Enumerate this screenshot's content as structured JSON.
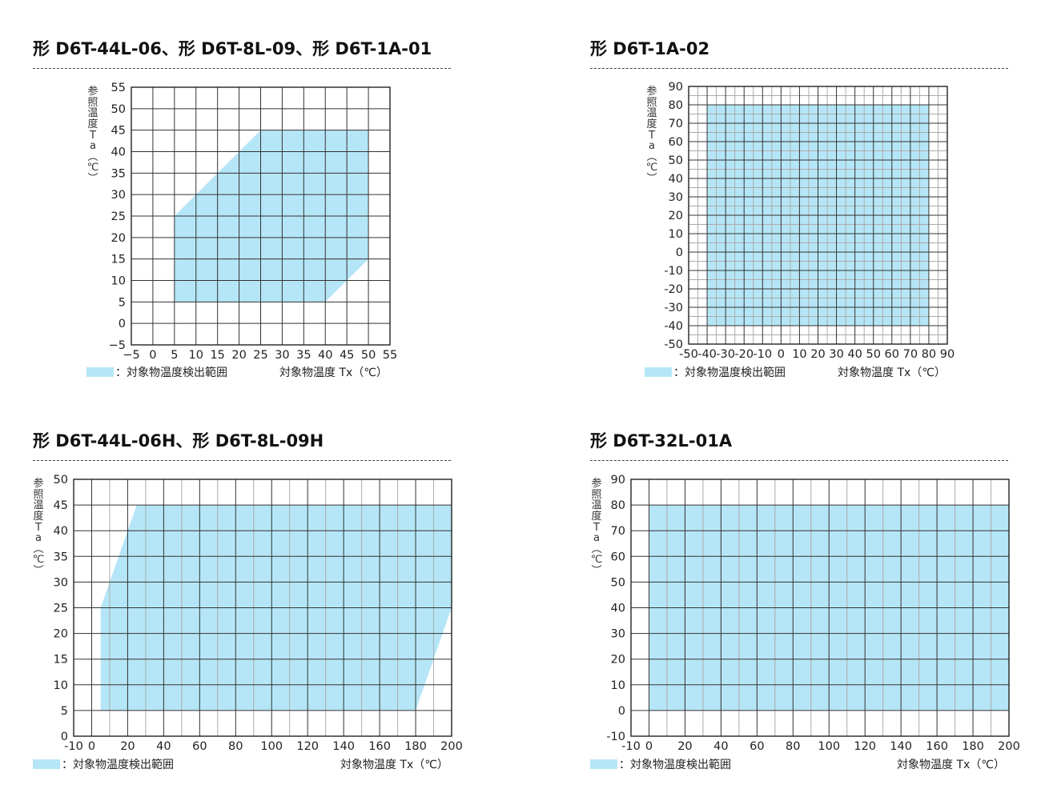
{
  "fill_color": "#b5e6f7",
  "chart_data": [
    {
      "type": "area",
      "panel_title": "形 D6T-44L-06、形 D6T-8L-09、形 D6T-1A-01",
      "ylabel": "参\n照\n温\n度\nT\na\n︵\n℃\n︶",
      "xlabel": "対象物温度 Tx（℃）",
      "legend": "：対象物温度検出範囲",
      "xlim": [
        -5,
        55
      ],
      "ylim": [
        -5,
        55
      ],
      "xticks": [
        -5,
        0,
        5,
        10,
        15,
        20,
        25,
        30,
        35,
        40,
        45,
        50,
        55
      ],
      "yticks": [
        -5,
        0,
        5,
        10,
        15,
        20,
        25,
        30,
        35,
        40,
        45,
        50,
        55
      ],
      "xtick_labels": [
        "−5",
        "0",
        "5",
        "10",
        "15",
        "20",
        "25",
        "30",
        "35",
        "40",
        "45",
        "50",
        "55"
      ],
      "ytick_labels": [
        "−5",
        "0",
        "5",
        "10",
        "15",
        "20",
        "25",
        "30",
        "35",
        "40",
        "45",
        "50",
        "55"
      ],
      "minor_x": [],
      "minor_y": [],
      "region": [
        [
          5,
          5
        ],
        [
          5,
          25
        ],
        [
          25,
          45
        ],
        [
          50,
          45
        ],
        [
          50,
          15
        ],
        [
          40,
          5
        ]
      ]
    },
    {
      "type": "area",
      "panel_title": "形 D6T-1A-02",
      "ylabel": "参\n照\n温\n度\nT\na\n︵\n℃\n︶",
      "xlabel": "対象物温度 Tx（℃）",
      "legend": "：対象物温度検出範囲",
      "xlim": [
        -50,
        90
      ],
      "ylim": [
        -50,
        90
      ],
      "xticks": [
        -50,
        -40,
        -30,
        -20,
        -10,
        0,
        10,
        20,
        30,
        40,
        50,
        60,
        70,
        80,
        90
      ],
      "yticks": [
        -50,
        -40,
        -30,
        -20,
        -10,
        0,
        10,
        20,
        30,
        40,
        50,
        60,
        70,
        80,
        90
      ],
      "xtick_labels": [
        "-50",
        "-40",
        "-30",
        "-20",
        "-10",
        "0",
        "10",
        "20",
        "30",
        "40",
        "50",
        "60",
        "70",
        "80",
        "90"
      ],
      "ytick_labels": [
        "-50",
        "-40",
        "-30",
        "-20",
        "-10",
        "0",
        "10",
        "20",
        "30",
        "40",
        "50",
        "60",
        "70",
        "80",
        "90"
      ],
      "minor_x": [
        -45,
        -35,
        -25,
        -15,
        -5,
        5,
        15,
        25,
        35,
        45,
        55,
        65,
        75,
        85
      ],
      "minor_y": [
        -45,
        -35,
        -25,
        -15,
        -5,
        5,
        15,
        25,
        35,
        45,
        55,
        65,
        75,
        85
      ],
      "region": [
        [
          -40,
          -40
        ],
        [
          -40,
          80
        ],
        [
          80,
          80
        ],
        [
          80,
          -40
        ]
      ]
    },
    {
      "type": "area",
      "panel_title": "形 D6T-44L-06H、形 D6T-8L-09H",
      "ylabel": "参\n照\n温\n度\nT\na\n︵\n℃\n︶",
      "xlabel": "対象物温度 Tx（℃）",
      "legend": "：対象物温度検出範囲",
      "xlim": [
        -10,
        200
      ],
      "ylim": [
        0,
        50
      ],
      "xticks": [
        -10,
        0,
        20,
        40,
        60,
        80,
        100,
        120,
        140,
        160,
        180,
        200
      ],
      "yticks": [
        0,
        5,
        10,
        15,
        20,
        25,
        30,
        35,
        40,
        45,
        50
      ],
      "xtick_labels": [
        "-10",
        "0",
        "20",
        "40",
        "60",
        "80",
        "100",
        "120",
        "140",
        "160",
        "180",
        "200"
      ],
      "ytick_labels": [
        "0",
        "5",
        "10",
        "15",
        "20",
        "25",
        "30",
        "35",
        "40",
        "45",
        "50"
      ],
      "minor_x": [
        10,
        30,
        50,
        70,
        90,
        110,
        130,
        150,
        170,
        190
      ],
      "minor_y": [],
      "region": [
        [
          5,
          5
        ],
        [
          5,
          25
        ],
        [
          25,
          45
        ],
        [
          200,
          45
        ],
        [
          200,
          25
        ],
        [
          180,
          5
        ]
      ]
    },
    {
      "type": "area",
      "panel_title": "形 D6T-32L-01A",
      "ylabel": "参\n照\n温\n度\nT\na\n︵\n℃\n︶",
      "xlabel": "対象物温度 Tx（℃）",
      "legend": "：対象物温度検出範囲",
      "xlim": [
        -10,
        200
      ],
      "ylim": [
        -10,
        90
      ],
      "xticks": [
        -10,
        0,
        20,
        40,
        60,
        80,
        100,
        120,
        140,
        160,
        180,
        200
      ],
      "yticks": [
        -10,
        0,
        10,
        20,
        30,
        40,
        50,
        60,
        70,
        80,
        90
      ],
      "xtick_labels": [
        "-10",
        "0",
        "20",
        "40",
        "60",
        "80",
        "100",
        "120",
        "140",
        "160",
        "180",
        "200"
      ],
      "ytick_labels": [
        "-10",
        "0",
        "10",
        "20",
        "30",
        "40",
        "50",
        "60",
        "70",
        "80",
        "90"
      ],
      "minor_x": [
        10,
        30,
        50,
        70,
        90,
        110,
        130,
        150,
        170,
        190
      ],
      "minor_y": [],
      "region": [
        [
          0,
          0
        ],
        [
          0,
          80
        ],
        [
          200,
          80
        ],
        [
          200,
          0
        ]
      ]
    }
  ]
}
